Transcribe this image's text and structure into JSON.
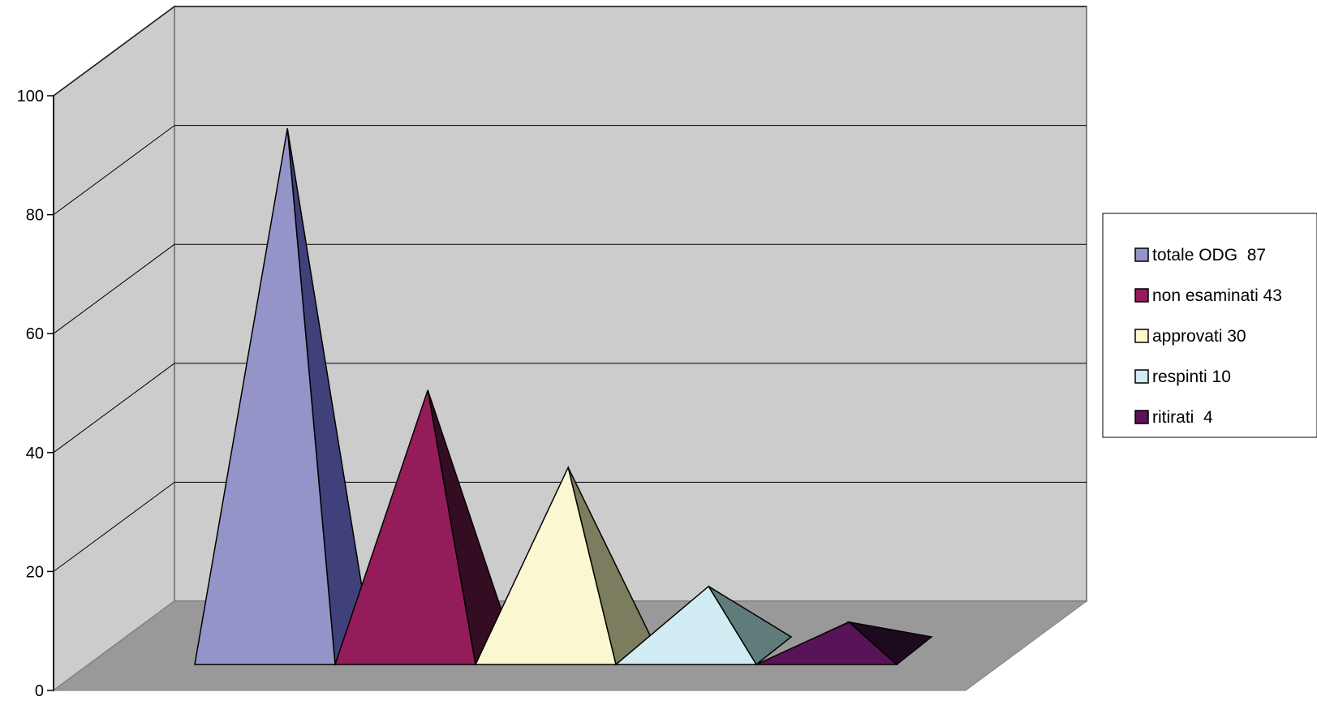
{
  "chart_data": {
    "type": "bar",
    "style": "3d-pyramid",
    "title": "",
    "xlabel": "",
    "ylabel": "",
    "ylim": [
      0,
      100
    ],
    "y_ticks": [
      "0",
      "20",
      "40",
      "60",
      "80",
      "100"
    ],
    "grid": true,
    "legend_position": "right",
    "series": [
      {
        "name": "totale ODG  87",
        "value": 87,
        "front_color": "#9494c8",
        "side_color": "#40407a"
      },
      {
        "name": "non esaminati 43",
        "value": 43,
        "front_color": "#951c5a",
        "side_color": "#340d22"
      },
      {
        "name": "approvati 30",
        "value": 30,
        "front_color": "#fbf7d0",
        "side_color": "#7c7c5e"
      },
      {
        "name": "respinti 10",
        "value": 10,
        "front_color": "#d0ebf2",
        "side_color": "#5f7c7a"
      },
      {
        "name": "ritirati  4",
        "value": 4,
        "front_color": "#581359",
        "side_color": "#1e0a1e"
      }
    ],
    "colors": {
      "wall": "#cccccc",
      "floor": "#999999",
      "gridline": "#000000"
    }
  }
}
